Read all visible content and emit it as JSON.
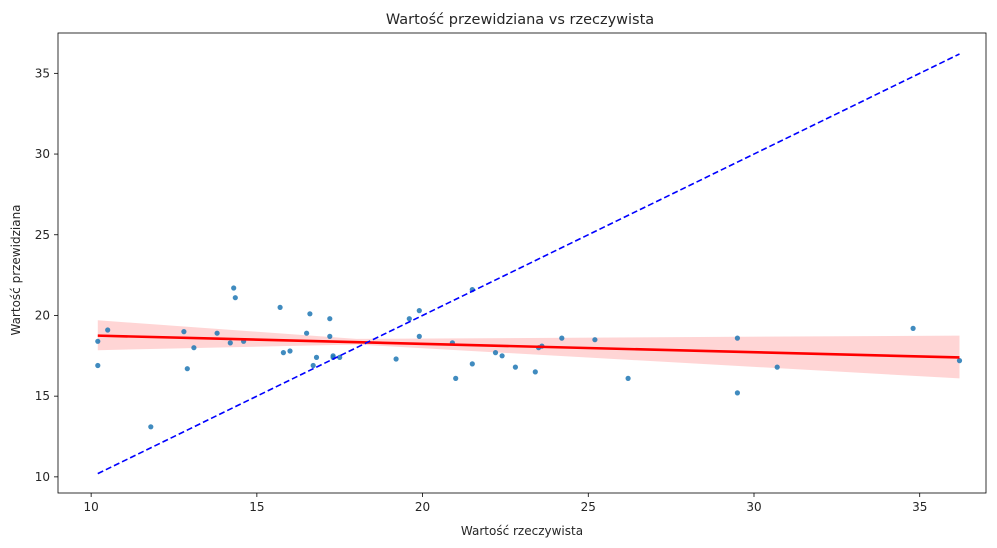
{
  "chart_data": {
    "type": "scatter",
    "title": "Wartość przewidziana vs rzeczywista",
    "xlabel": "Wartość rzeczywista",
    "ylabel": "Wartość przewidziana",
    "xlim": [
      9.0,
      37.0
    ],
    "ylim": [
      9.0,
      37.5
    ],
    "x_ticks": [
      10,
      15,
      20,
      25,
      30,
      35
    ],
    "y_ticks": [
      10,
      15,
      20,
      25,
      30,
      35
    ],
    "grid": false,
    "colors": {
      "points": "#1f77b4",
      "regression": "#ff0000",
      "confidence_band": "#ffb3b3",
      "identity": "#0000ff"
    },
    "points": [
      {
        "x": 10.2,
        "y": 18.4
      },
      {
        "x": 10.2,
        "y": 16.9
      },
      {
        "x": 10.5,
        "y": 19.1
      },
      {
        "x": 11.8,
        "y": 13.1
      },
      {
        "x": 12.8,
        "y": 19.0
      },
      {
        "x": 12.9,
        "y": 16.7
      },
      {
        "x": 13.1,
        "y": 18.0
      },
      {
        "x": 13.8,
        "y": 18.9
      },
      {
        "x": 14.2,
        "y": 18.3
      },
      {
        "x": 14.3,
        "y": 21.7
      },
      {
        "x": 14.35,
        "y": 21.1
      },
      {
        "x": 14.6,
        "y": 18.4
      },
      {
        "x": 15.7,
        "y": 20.5
      },
      {
        "x": 15.8,
        "y": 17.7
      },
      {
        "x": 16.0,
        "y": 17.8
      },
      {
        "x": 16.5,
        "y": 18.9
      },
      {
        "x": 16.6,
        "y": 20.1
      },
      {
        "x": 16.7,
        "y": 16.9
      },
      {
        "x": 16.8,
        "y": 17.4
      },
      {
        "x": 17.2,
        "y": 19.8
      },
      {
        "x": 17.2,
        "y": 18.7
      },
      {
        "x": 17.3,
        "y": 17.4
      },
      {
        "x": 17.3,
        "y": 17.5
      },
      {
        "x": 17.5,
        "y": 17.4
      },
      {
        "x": 19.2,
        "y": 17.3
      },
      {
        "x": 19.6,
        "y": 19.8
      },
      {
        "x": 19.9,
        "y": 20.3
      },
      {
        "x": 19.9,
        "y": 18.7
      },
      {
        "x": 20.9,
        "y": 18.3
      },
      {
        "x": 21.0,
        "y": 16.1
      },
      {
        "x": 21.5,
        "y": 17.0
      },
      {
        "x": 21.5,
        "y": 21.6
      },
      {
        "x": 22.2,
        "y": 17.7
      },
      {
        "x": 22.4,
        "y": 17.5
      },
      {
        "x": 22.8,
        "y": 16.8
      },
      {
        "x": 23.4,
        "y": 16.5
      },
      {
        "x": 23.5,
        "y": 18.0
      },
      {
        "x": 23.6,
        "y": 18.1
      },
      {
        "x": 24.2,
        "y": 18.6
      },
      {
        "x": 25.2,
        "y": 18.5
      },
      {
        "x": 26.2,
        "y": 16.1
      },
      {
        "x": 29.5,
        "y": 15.2
      },
      {
        "x": 29.5,
        "y": 18.6
      },
      {
        "x": 30.7,
        "y": 16.8
      },
      {
        "x": 34.8,
        "y": 19.2
      },
      {
        "x": 36.2,
        "y": 17.2
      }
    ],
    "regression_line": {
      "x": [
        10.2,
        36.2
      ],
      "y": [
        18.75,
        17.4
      ]
    },
    "confidence_band": {
      "x": [
        10.2,
        18.0,
        36.2
      ],
      "upper": [
        19.7,
        18.55,
        18.75
      ],
      "lower": [
        17.85,
        18.2,
        16.1
      ]
    },
    "identity_line": {
      "x": [
        10.2,
        36.2
      ],
      "y": [
        10.2,
        36.2
      ]
    }
  }
}
